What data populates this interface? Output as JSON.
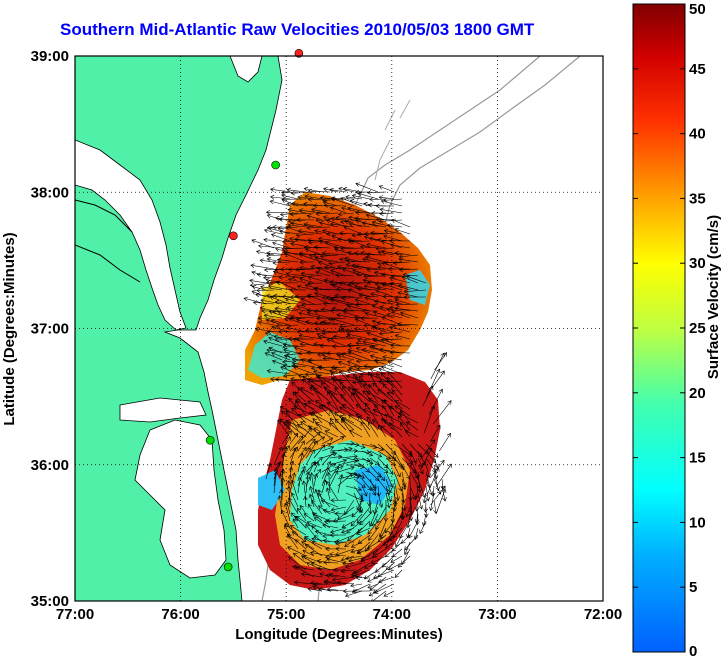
{
  "title": "Southern Mid-Atlantic Raw Velocities 2010/05/03 1800 GMT",
  "x_axis": {
    "label": "Longitude (Degrees:Minutes)",
    "ticks": [
      "77:00",
      "76:00",
      "75:00",
      "74:00",
      "73:00",
      "72:00"
    ],
    "range": [
      -77,
      -72
    ]
  },
  "y_axis": {
    "label": "Latitude (Degrees:Minutes)",
    "ticks": [
      "39:00",
      "38:00",
      "37:00",
      "36:00",
      "35:00"
    ],
    "range": [
      35,
      39
    ]
  },
  "colorbar": {
    "label": "Surface Velocity (cm/s)",
    "ticks": [
      "50",
      "45",
      "40",
      "35",
      "30",
      "25",
      "20",
      "15",
      "10",
      "5",
      "0"
    ],
    "range": [
      0,
      50
    ],
    "colormap": "jet"
  },
  "colors": {
    "land": "#50f0a8",
    "coast": "#000000",
    "bathymetry": "#999999",
    "arrows": "#000000",
    "title": "#0000ff",
    "station_active": "#00e000",
    "station_inactive": "#ff2020"
  },
  "grid": "dotted",
  "stations": [
    {
      "status": "inactive",
      "lon": -74.88,
      "lat": 39.02
    },
    {
      "status": "active",
      "lon": -75.1,
      "lat": 38.2
    },
    {
      "status": "inactive",
      "lon": -75.5,
      "lat": 37.68
    },
    {
      "status": "active",
      "lon": -75.72,
      "lat": 36.18
    },
    {
      "status": "active",
      "lon": -75.55,
      "lat": 35.25
    }
  ]
}
